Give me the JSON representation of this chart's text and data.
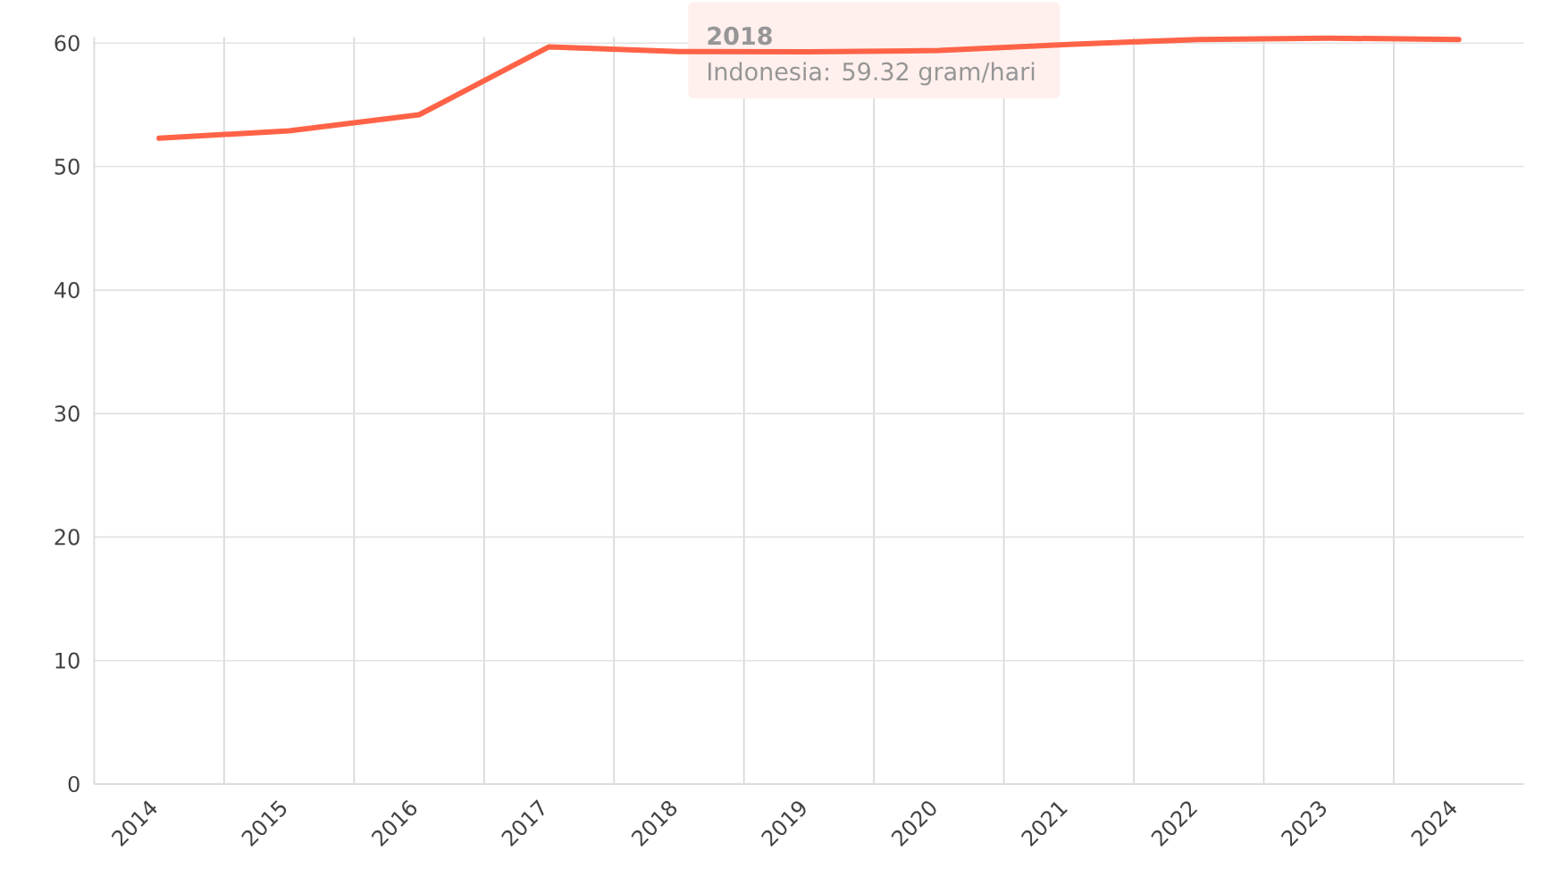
{
  "chart_data": {
    "type": "line",
    "categories": [
      "2014",
      "2015",
      "2016",
      "2017",
      "2018",
      "2019",
      "2020",
      "2021",
      "2022",
      "2023",
      "2024"
    ],
    "series": [
      {
        "color": "#ff6347",
        "values": [
          52.3,
          52.9,
          54.2,
          59.7,
          59.32,
          59.3,
          59.4,
          59.9,
          60.3,
          60.4,
          60.3
        ]
      }
    ],
    "ylim": [
      0,
      60.5
    ],
    "yticks": [
      0,
      10,
      20,
      30,
      40,
      50,
      60
    ],
    "grid": true,
    "marker": "none",
    "line_style": "solid",
    "annotations": [
      {
        "text": "2018",
        "x": "2018",
        "y": 59.32
      },
      {
        "text": "Indonesia: 59.32 gram/hari",
        "x": "2018",
        "y": 59.32
      }
    ]
  }
}
